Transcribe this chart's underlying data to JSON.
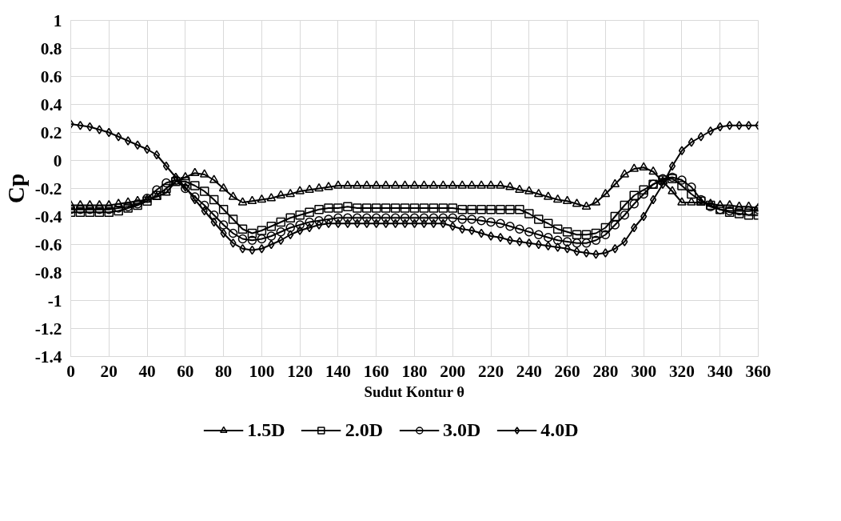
{
  "chart_data": {
    "type": "line",
    "xlabel": "Sudut Kontur θ",
    "ylabel": "Cp",
    "x": [
      0,
      5,
      10,
      15,
      20,
      25,
      30,
      35,
      40,
      45,
      50,
      55,
      60,
      65,
      70,
      75,
      80,
      85,
      90,
      95,
      100,
      105,
      110,
      115,
      120,
      125,
      130,
      135,
      140,
      145,
      150,
      155,
      160,
      165,
      170,
      175,
      180,
      185,
      190,
      195,
      200,
      205,
      210,
      215,
      220,
      225,
      230,
      235,
      240,
      245,
      250,
      255,
      260,
      265,
      270,
      275,
      280,
      285,
      290,
      295,
      300,
      305,
      310,
      315,
      320,
      325,
      330,
      335,
      340,
      345,
      350,
      355,
      360
    ],
    "xlim": [
      0,
      360
    ],
    "xticks": [
      0,
      20,
      40,
      60,
      80,
      100,
      120,
      140,
      160,
      180,
      200,
      220,
      240,
      260,
      280,
      300,
      320,
      340,
      360
    ],
    "ylim": [
      -1.4,
      1
    ],
    "yticks": [
      -1.4,
      -1.2,
      -1,
      -0.8,
      -0.6,
      -0.4,
      -0.2,
      0,
      0.2,
      0.4,
      0.6,
      0.8,
      1
    ],
    "grid": true,
    "legend": "bottom",
    "line_style": "solid",
    "series": [
      {
        "name": "1.5D",
        "color": "#000000",
        "marker": "triangle",
        "values": [
          -0.32,
          -0.32,
          -0.32,
          -0.32,
          -0.32,
          -0.31,
          -0.3,
          -0.29,
          -0.28,
          -0.26,
          -0.23,
          -0.15,
          -0.12,
          -0.09,
          -0.1,
          -0.14,
          -0.2,
          -0.26,
          -0.3,
          -0.29,
          -0.28,
          -0.27,
          -0.25,
          -0.24,
          -0.22,
          -0.21,
          -0.2,
          -0.19,
          -0.18,
          -0.18,
          -0.18,
          -0.18,
          -0.18,
          -0.18,
          -0.18,
          -0.18,
          -0.18,
          -0.18,
          -0.18,
          -0.18,
          -0.18,
          -0.18,
          -0.18,
          -0.18,
          -0.18,
          -0.18,
          -0.19,
          -0.21,
          -0.22,
          -0.24,
          -0.26,
          -0.28,
          -0.29,
          -0.31,
          -0.33,
          -0.3,
          -0.24,
          -0.17,
          -0.1,
          -0.06,
          -0.05,
          -0.08,
          -0.15,
          -0.22,
          -0.3,
          -0.3,
          -0.3,
          -0.31,
          -0.32,
          -0.32,
          -0.33,
          -0.33,
          -0.34
        ]
      },
      {
        "name": "2.0D",
        "color": "#000000",
        "marker": "square",
        "values": [
          -0.37,
          -0.37,
          -0.37,
          -0.37,
          -0.37,
          -0.36,
          -0.34,
          -0.32,
          -0.29,
          -0.25,
          -0.2,
          -0.15,
          -0.15,
          -0.18,
          -0.22,
          -0.28,
          -0.35,
          -0.42,
          -0.49,
          -0.52,
          -0.5,
          -0.47,
          -0.44,
          -0.41,
          -0.39,
          -0.37,
          -0.35,
          -0.34,
          -0.34,
          -0.33,
          -0.34,
          -0.34,
          -0.34,
          -0.34,
          -0.34,
          -0.34,
          -0.34,
          -0.34,
          -0.34,
          -0.34,
          -0.34,
          -0.35,
          -0.35,
          -0.35,
          -0.35,
          -0.35,
          -0.35,
          -0.35,
          -0.38,
          -0.42,
          -0.45,
          -0.49,
          -0.51,
          -0.53,
          -0.53,
          -0.52,
          -0.48,
          -0.4,
          -0.32,
          -0.25,
          -0.21,
          -0.17,
          -0.14,
          -0.13,
          -0.18,
          -0.24,
          -0.29,
          -0.32,
          -0.35,
          -0.37,
          -0.38,
          -0.39,
          -0.39
        ]
      },
      {
        "name": "3.0D",
        "color": "#000000",
        "marker": "circle",
        "values": [
          -0.35,
          -0.35,
          -0.35,
          -0.35,
          -0.35,
          -0.34,
          -0.33,
          -0.31,
          -0.27,
          -0.21,
          -0.16,
          -0.14,
          -0.2,
          -0.26,
          -0.32,
          -0.39,
          -0.46,
          -0.52,
          -0.56,
          -0.57,
          -0.56,
          -0.54,
          -0.51,
          -0.48,
          -0.46,
          -0.44,
          -0.43,
          -0.42,
          -0.41,
          -0.41,
          -0.41,
          -0.41,
          -0.41,
          -0.41,
          -0.41,
          -0.41,
          -0.41,
          -0.41,
          -0.41,
          -0.41,
          -0.41,
          -0.42,
          -0.42,
          -0.43,
          -0.44,
          -0.45,
          -0.47,
          -0.49,
          -0.51,
          -0.53,
          -0.55,
          -0.57,
          -0.58,
          -0.59,
          -0.59,
          -0.57,
          -0.53,
          -0.46,
          -0.39,
          -0.31,
          -0.24,
          -0.17,
          -0.13,
          -0.12,
          -0.14,
          -0.19,
          -0.28,
          -0.33,
          -0.35,
          -0.36,
          -0.36,
          -0.36,
          -0.35
        ]
      },
      {
        "name": "4.0D",
        "color": "#000000",
        "marker": "diamond",
        "values": [
          0.26,
          0.25,
          0.24,
          0.22,
          0.2,
          0.17,
          0.14,
          0.11,
          0.08,
          0.04,
          -0.04,
          -0.12,
          -0.19,
          -0.28,
          -0.36,
          -0.44,
          -0.52,
          -0.59,
          -0.63,
          -0.64,
          -0.63,
          -0.6,
          -0.57,
          -0.53,
          -0.5,
          -0.48,
          -0.46,
          -0.45,
          -0.45,
          -0.45,
          -0.45,
          -0.45,
          -0.45,
          -0.45,
          -0.45,
          -0.45,
          -0.45,
          -0.45,
          -0.45,
          -0.45,
          -0.47,
          -0.49,
          -0.5,
          -0.52,
          -0.54,
          -0.55,
          -0.57,
          -0.58,
          -0.59,
          -0.6,
          -0.61,
          -0.62,
          -0.63,
          -0.65,
          -0.66,
          -0.67,
          -0.66,
          -0.63,
          -0.58,
          -0.48,
          -0.4,
          -0.28,
          -0.17,
          -0.04,
          0.07,
          0.13,
          0.17,
          0.21,
          0.24,
          0.25,
          0.25,
          0.25,
          0.25
        ]
      }
    ]
  }
}
